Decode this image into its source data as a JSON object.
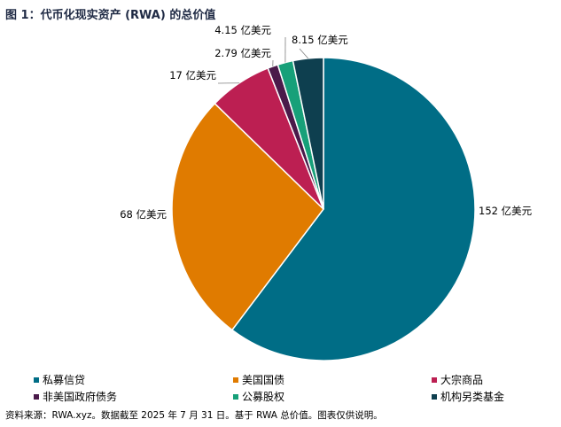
{
  "title": "图 1：代币化现实资产 (RWA) 的总价值",
  "source": "资料来源：RWA.xyz。数据截至 2025 年 7 月 31 日。基于 RWA 总价值。图表仅供说明。",
  "chart_data": {
    "type": "pie",
    "title": "图 1：代币化现实资产 (RWA) 的总价值",
    "unit": "亿美元",
    "legend_position": "bottom",
    "slices": [
      {
        "name": "私募信贷",
        "value": 152,
        "label": "152 亿美元",
        "color": "#006d86"
      },
      {
        "name": "美国国债",
        "value": 68,
        "label": "68 亿美元",
        "color": "#e07b00"
      },
      {
        "name": "大宗商品",
        "value": 17,
        "label": "17 亿美元",
        "color": "#bc1f52"
      },
      {
        "name": "非美国政府债务",
        "value": 2.79,
        "label": "2.79 亿美元",
        "color": "#4a1a4a"
      },
      {
        "name": "公募股权",
        "value": 4.15,
        "label": "4.15 亿美元",
        "color": "#17a079"
      },
      {
        "name": "机构另类基金",
        "value": 8.15,
        "label": "8.15 亿美元",
        "color": "#0e3f4f"
      }
    ]
  }
}
